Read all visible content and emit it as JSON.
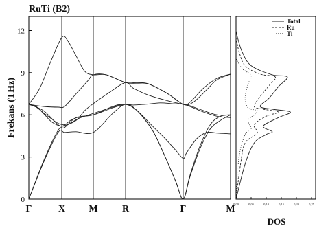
{
  "chart_data": [
    {
      "type": "line",
      "title": "RuTi (B2)",
      "xlabel": "",
      "ylabel": "Frekans (THz)",
      "ylim": [
        0,
        13
      ],
      "yticks": [
        0,
        3,
        6,
        9,
        12
      ],
      "kpoint_labels": [
        "Γ",
        "X",
        "M",
        "R",
        "Γ",
        "M"
      ],
      "grid": false,
      "series": [
        {
          "values": [
            [
              0,
              6.75
            ],
            [
              0.1,
              6.6
            ],
            [
              0.2,
              6.1
            ],
            [
              0.3,
              5.55
            ],
            [
              0.4,
              5.25
            ],
            [
              0.5,
              5.2
            ],
            [
              0.6,
              5.4
            ],
            [
              0.75,
              5.75
            ],
            [
              1,
              6.1
            ],
            [
              1.3,
              6.55
            ],
            [
              1.5,
              6.75
            ],
            [
              1.8,
              6.3
            ],
            [
              2.2,
              5.2
            ],
            [
              2.5,
              4.4
            ],
            [
              2.8,
              3.5
            ],
            [
              3,
              2.9
            ],
            [
              3.1,
              3.3
            ],
            [
              3.4,
              4.3
            ],
            [
              3.7,
              4.75
            ],
            [
              4,
              4.7
            ],
            [
              4.4,
              4.65
            ]
          ]
        },
        {
          "values": [
            [
              0,
              6.75
            ],
            [
              0.1,
              6.55
            ],
            [
              0.2,
              6.15
            ],
            [
              0.3,
              5.75
            ],
            [
              0.4,
              5.4
            ],
            [
              0.5,
              5.3
            ],
            [
              0.6,
              5.6
            ],
            [
              0.75,
              5.85
            ],
            [
              1,
              6.0
            ],
            [
              1.3,
              6.6
            ],
            [
              1.5,
              6.75
            ],
            [
              1.8,
              6.3
            ],
            [
              2.2,
              4.9
            ],
            [
              2.5,
              3.2
            ],
            [
              2.8,
              1.3
            ],
            [
              3,
              0
            ],
            [
              3.2,
              1.6
            ],
            [
              3.5,
              3.6
            ],
            [
              3.8,
              5.0
            ],
            [
              4.1,
              5.6
            ],
            [
              4.4,
              6.0
            ]
          ]
        },
        {
          "values": [
            [
              0,
              0
            ],
            [
              0.2,
              2.6
            ],
            [
              0.4,
              4.75
            ],
            [
              0.5,
              4.75
            ],
            [
              0.7,
              4.8
            ],
            [
              1,
              4.75
            ],
            [
              1.3,
              6.1
            ],
            [
              1.5,
              6.75
            ],
            [
              1.8,
              6.3
            ],
            [
              2.2,
              4.9
            ],
            [
              2.5,
              3.2
            ],
            [
              2.8,
              1.3
            ],
            [
              3,
              0
            ],
            [
              3.2,
              1.7
            ],
            [
              3.5,
              3.8
            ],
            [
              3.8,
              5.3
            ],
            [
              4.1,
              5.9
            ],
            [
              4.4,
              6.0
            ]
          ]
        },
        {
          "values": [
            [
              0,
              0
            ],
            [
              0.2,
              2.7
            ],
            [
              0.4,
              4.9
            ],
            [
              0.5,
              5.1
            ],
            [
              0.7,
              5.8
            ],
            [
              1,
              6.0
            ],
            [
              1.3,
              6.5
            ],
            [
              1.5,
              6.75
            ],
            [
              1.7,
              6.7
            ],
            [
              2,
              6.75
            ],
            [
              2.4,
              6.85
            ],
            [
              2.7,
              6.8
            ],
            [
              3,
              6.75
            ],
            [
              3.3,
              6.5
            ],
            [
              3.6,
              6.2
            ],
            [
              4,
              5.9
            ],
            [
              4.4,
              5.8
            ]
          ]
        },
        {
          "values": [
            [
              0,
              6.75
            ],
            [
              0.15,
              7.9
            ],
            [
              0.3,
              9.8
            ],
            [
              0.45,
              11.5
            ],
            [
              0.55,
              11.3
            ],
            [
              0.7,
              10.2
            ],
            [
              0.85,
              9.1
            ],
            [
              1,
              8.85
            ],
            [
              1.2,
              8.85
            ],
            [
              1.5,
              8.3
            ],
            [
              1.8,
              8.25
            ],
            [
              2.1,
              8.2
            ],
            [
              2.6,
              7.5
            ],
            [
              3,
              6.75
            ],
            [
              3.2,
              6.9
            ],
            [
              3.6,
              7.9
            ],
            [
              4.0,
              8.6
            ],
            [
              4.4,
              8.9
            ]
          ]
        },
        {
          "values": [
            [
              0,
              6.75
            ],
            [
              0.2,
              6.6
            ],
            [
              0.4,
              6.55
            ],
            [
              0.5,
              6.6
            ],
            [
              0.7,
              7.5
            ],
            [
              0.9,
              8.4
            ],
            [
              1,
              8.85
            ],
            [
              1.2,
              8.85
            ],
            [
              1.5,
              8.3
            ],
            [
              1.8,
              8.3
            ],
            [
              2.1,
              8.2
            ],
            [
              2.6,
              7.5
            ],
            [
              3,
              6.75
            ],
            [
              3.3,
              6.9
            ],
            [
              3.7,
              7.8
            ],
            [
              4.0,
              8.5
            ],
            [
              4.4,
              8.9
            ]
          ]
        },
        {
          "values": [
            [
              0,
              6.75
            ],
            [
              0.2,
              6.3
            ],
            [
              0.4,
              5.3
            ],
            [
              0.5,
              5.25
            ],
            [
              0.7,
              5.6
            ],
            [
              0.85,
              6.3
            ],
            [
              1,
              6.8
            ],
            [
              1.25,
              7.6
            ],
            [
              1.5,
              8.3
            ],
            [
              1.7,
              7.9
            ],
            [
              2.1,
              7.4
            ],
            [
              2.6,
              7.0
            ],
            [
              3,
              6.75
            ],
            [
              3.2,
              6.65
            ],
            [
              3.6,
              6.3
            ],
            [
              4.0,
              6.0
            ],
            [
              4.4,
              6.0
            ]
          ]
        }
      ]
    },
    {
      "type": "line",
      "xlabel": "DOS",
      "ylabel": "",
      "xticks": [
        "0,00",
        "0,05",
        "0,10",
        "0,15",
        "0,20",
        "0,25"
      ],
      "legend": {
        "placement": "top-right",
        "entries": [
          "Total",
          "Ru",
          "Ti"
        ]
      },
      "series": [
        {
          "name": "Total",
          "style": "solid",
          "values": [
            [
              0,
              0
            ],
            [
              0.03,
              2.5
            ],
            [
              0.06,
              4.0
            ],
            [
              0.1,
              4.6
            ],
            [
              0.12,
              4.8
            ],
            [
              0.09,
              5.2
            ],
            [
              0.14,
              5.8
            ],
            [
              0.18,
              6.2
            ],
            [
              0.12,
              6.4
            ],
            [
              0.08,
              6.6
            ],
            [
              0.11,
              7.2
            ],
            [
              0.14,
              8.0
            ],
            [
              0.17,
              8.7
            ],
            [
              0.12,
              8.85
            ],
            [
              0.05,
              9.5
            ],
            [
              0.02,
              10.5
            ],
            [
              0.005,
              11.5
            ],
            [
              0,
              12
            ]
          ]
        },
        {
          "name": "Ru",
          "style": "dashed",
          "values": [
            [
              0,
              0
            ],
            [
              0.015,
              2.5
            ],
            [
              0.03,
              4.0
            ],
            [
              0.07,
              4.7
            ],
            [
              0.06,
              5.3
            ],
            [
              0.1,
              5.9
            ],
            [
              0.14,
              6.2
            ],
            [
              0.09,
              6.4
            ],
            [
              0.06,
              6.6
            ],
            [
              0.08,
              7.3
            ],
            [
              0.11,
              8.1
            ],
            [
              0.13,
              8.7
            ],
            [
              0.08,
              8.9
            ],
            [
              0.03,
              9.5
            ],
            [
              0.01,
              10.5
            ],
            [
              0,
              11.5
            ]
          ]
        },
        {
          "name": "Ti",
          "style": "dotted",
          "values": [
            [
              0,
              0
            ],
            [
              0.01,
              3.0
            ],
            [
              0.03,
              4.6
            ],
            [
              0.05,
              5.0
            ],
            [
              0.04,
              5.6
            ],
            [
              0.06,
              6.0
            ],
            [
              0.07,
              6.3
            ],
            [
              0.04,
              6.5
            ],
            [
              0.03,
              7.2
            ],
            [
              0.04,
              8.2
            ],
            [
              0.05,
              8.8
            ],
            [
              0.02,
              9.3
            ],
            [
              0,
              10
            ]
          ]
        }
      ]
    }
  ]
}
